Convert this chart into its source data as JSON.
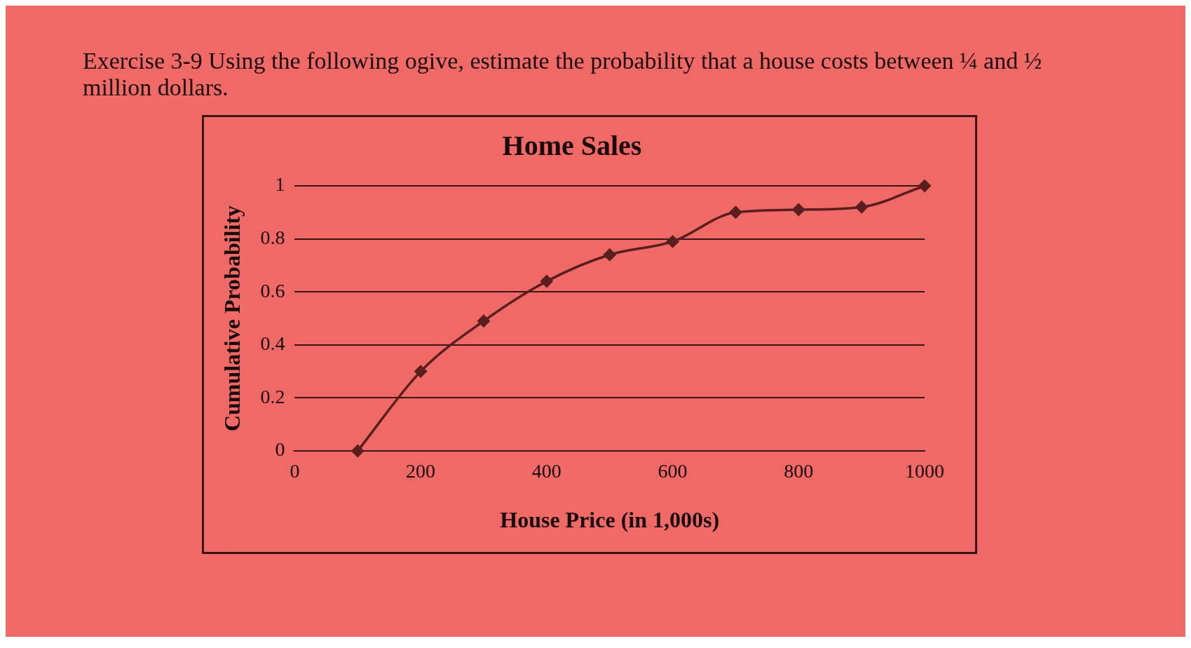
{
  "chart_data": {
    "type": "line",
    "title": "Home Sales",
    "xlabel": "House Price (in 1,000s)",
    "ylabel": "Cumulative Probability",
    "annotations": [
      "Exercise 3-9    Using the following ogive, estimate the probability that a house costs between ¼ and ½ million dollars."
    ],
    "x": [
      100,
      200,
      300,
      400,
      500,
      600,
      700,
      800,
      900,
      1000
    ],
    "series": [
      {
        "color": "#5a1e1e",
        "values": [
          0,
          0.3,
          0.49,
          0.64,
          0.74,
          0.79,
          0.9,
          0.91,
          0.92,
          1.0
        ]
      }
    ],
    "xlim": [
      0,
      1000
    ],
    "xticks": [
      0,
      200,
      400,
      600,
      800,
      1000
    ],
    "ylim": [
      0,
      1
    ],
    "yticks": [
      0,
      0.2,
      0.4,
      0.6,
      0.8,
      1
    ],
    "grid": "y",
    "legend": false,
    "marker": "diamond",
    "line_style": "solid"
  }
}
